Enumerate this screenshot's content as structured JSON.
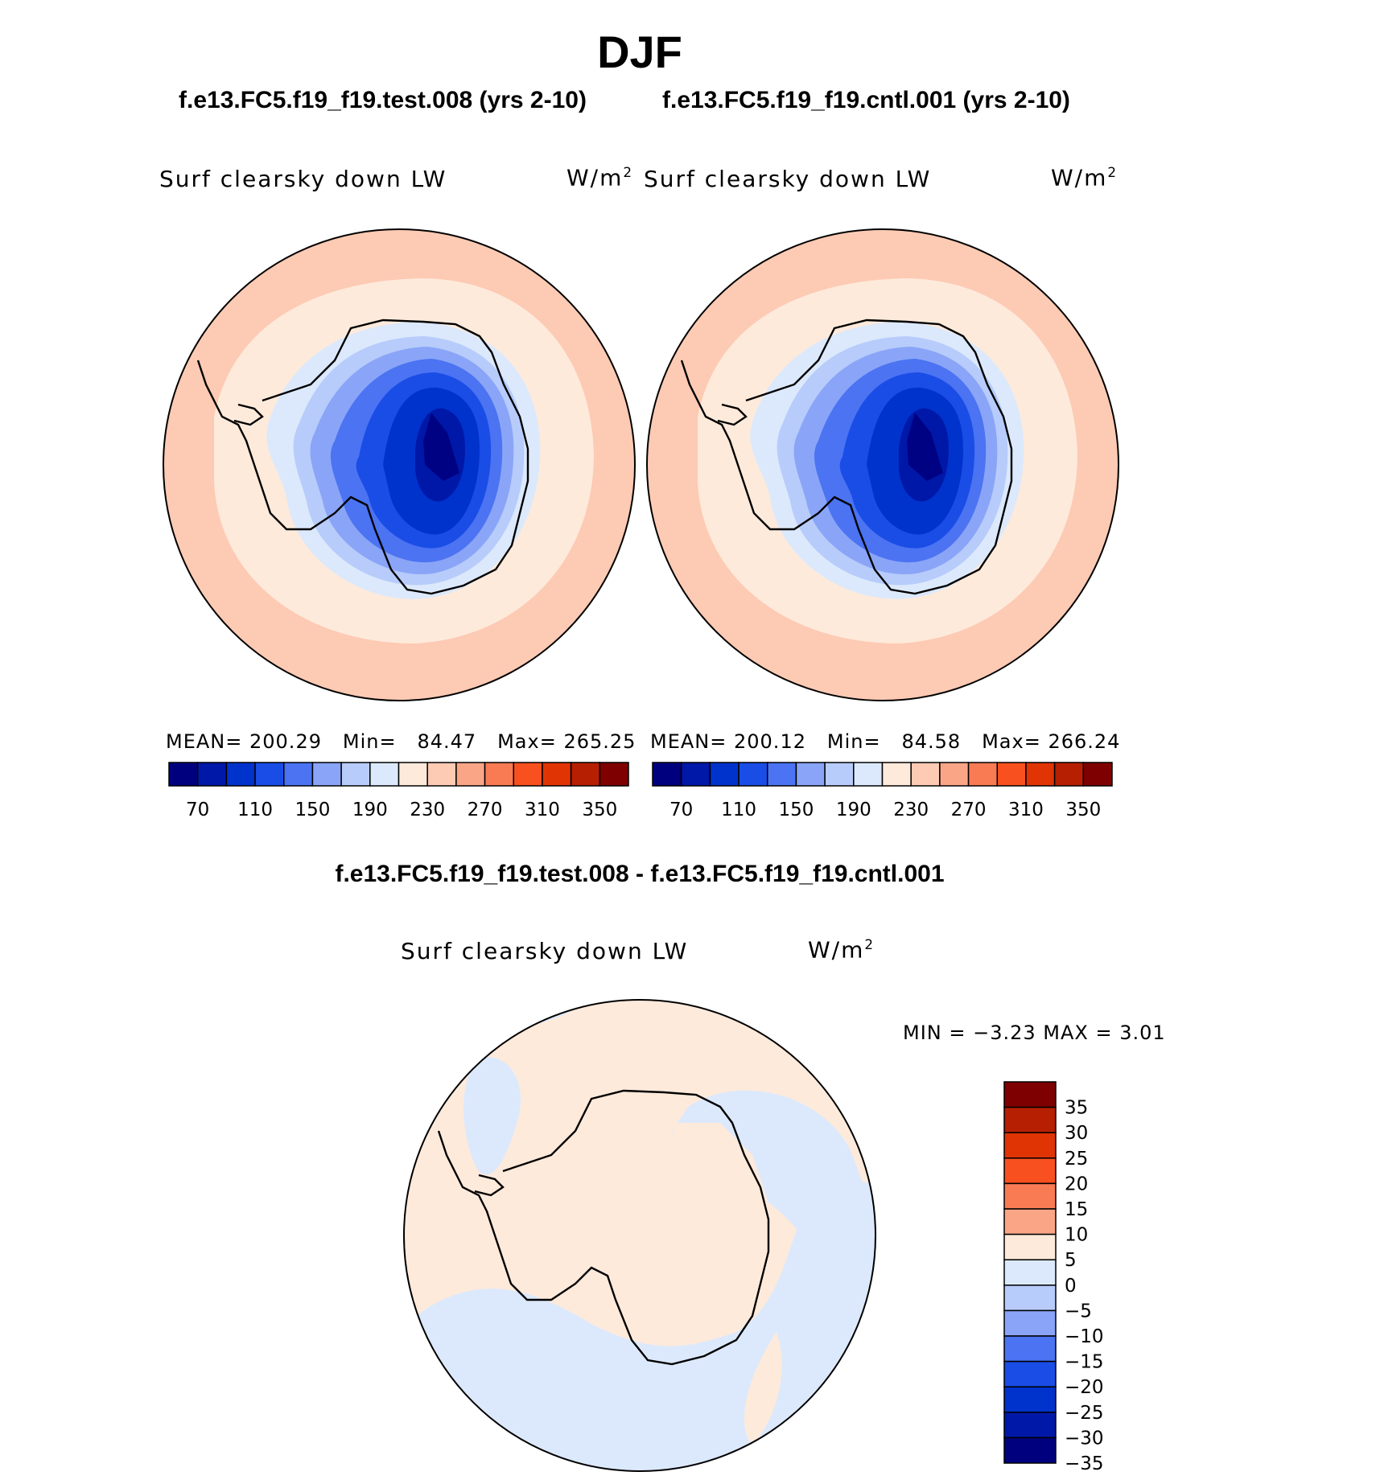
{
  "season_title": "DJF",
  "panels": [
    {
      "case_title": "f.e13.FC5.f19_f19.test.008 (yrs 2-10)",
      "variable": "Surf clearsky down LW",
      "units_base": "W/m",
      "units_exp": "2",
      "stats": {
        "mean_label": "MEAN=",
        "mean": "200.29",
        "min_label": "Min=",
        "min": "84.47",
        "max_label": "Max=",
        "max": "265.25"
      }
    },
    {
      "case_title": "f.e13.FC5.f19_f19.cntl.001 (yrs 2-10)",
      "variable": "Surf clearsky down LW",
      "units_base": "W/m",
      "units_exp": "2",
      "stats": {
        "mean_label": "MEAN=",
        "mean": "200.12",
        "min_label": "Min=",
        "min": "84.58",
        "max_label": "Max=",
        "max": "266.24"
      }
    }
  ],
  "colorbar": {
    "colors": [
      "#00007f",
      "#0018a8",
      "#0033cc",
      "#1a4de6",
      "#4b73f2",
      "#8aa5f7",
      "#b7ccfb",
      "#dce9fc",
      "#feeadb",
      "#fdcab4",
      "#fba587",
      "#f97b54",
      "#f8501f",
      "#e03405",
      "#b61f02",
      "#7f0000"
    ],
    "tick_labels": [
      "70",
      "110",
      "150",
      "190",
      "230",
      "270",
      "310",
      "350"
    ]
  },
  "difference": {
    "title": "f.e13.FC5.f19_f19.test.008 - f.e13.FC5.f19_f19.cntl.001",
    "variable": "Surf clearsky down LW",
    "units_base": "W/m",
    "units_exp": "2",
    "min_max_text": "MIN =   −3.23 MAX =    3.01",
    "colorbar": {
      "colors": [
        "#00007f",
        "#0018a8",
        "#0033cc",
        "#1a4de6",
        "#4b73f2",
        "#8aa5f7",
        "#b7ccfb",
        "#dce9fc",
        "#feeadb",
        "#fba587",
        "#f97b54",
        "#f8501f",
        "#e03405",
        "#b61f02",
        "#7f0000"
      ],
      "tick_labels": [
        "35",
        "30",
        "25",
        "20",
        "15",
        "10",
        "5",
        "0",
        "−5",
        "−10",
        "−15",
        "−20",
        "−25",
        "−30",
        "−35"
      ]
    }
  }
}
